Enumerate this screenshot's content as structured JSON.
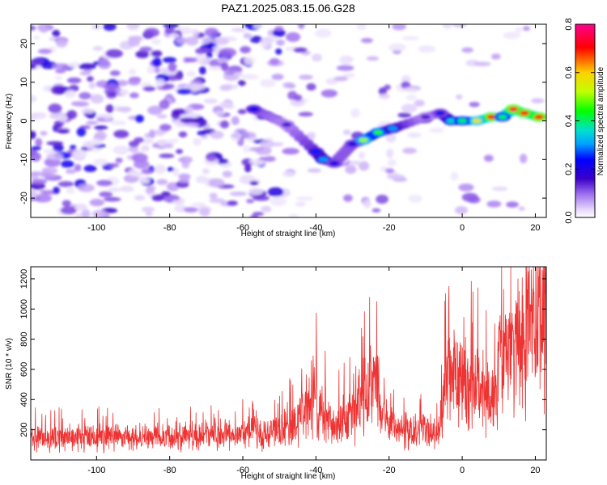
{
  "title": "PAZ1.2025.083.15.06.G28",
  "chart_data": [
    {
      "type": "heatmap",
      "xlabel": "Height of straight line (km)",
      "ylabel": "Frequency (Hz)",
      "xlim": [
        -118,
        23
      ],
      "ylim": [
        -25,
        25
      ],
      "xticks": [
        -100,
        -80,
        -60,
        -40,
        -20,
        0,
        20
      ],
      "yticks": [
        -20,
        -10,
        0,
        10,
        20
      ],
      "colorbar": {
        "label": "Normalized spectral amplitude",
        "range": [
          0.0,
          0.8
        ],
        "ticks": [
          0.0,
          0.2,
          0.4,
          0.6,
          0.8
        ],
        "colors": [
          "#ffffff",
          "#a070f0",
          "#3c00c8",
          "#0000ff",
          "#00a0ff",
          "#00e0d0",
          "#00ff00",
          "#c0ff00",
          "#ffd000",
          "#ff0000",
          "#ff0090"
        ]
      },
      "ridge": [
        {
          "x": -57,
          "y": 3,
          "value": 0.22
        },
        {
          "x": -48,
          "y": -1,
          "value": 0.15
        },
        {
          "x": -40,
          "y": -8,
          "value": 0.25
        },
        {
          "x": -38,
          "y": -10,
          "value": 0.3
        },
        {
          "x": -35,
          "y": -11,
          "value": 0.2
        },
        {
          "x": -30,
          "y": -6,
          "value": 0.2
        },
        {
          "x": -27,
          "y": -5,
          "value": 0.5
        },
        {
          "x": -23,
          "y": -3,
          "value": 0.45
        },
        {
          "x": -19,
          "y": -2,
          "value": 0.3
        },
        {
          "x": -10,
          "y": 1,
          "value": 0.15
        },
        {
          "x": -6,
          "y": 2,
          "value": 0.2
        },
        {
          "x": -3,
          "y": 0,
          "value": 0.35
        },
        {
          "x": 0,
          "y": 0,
          "value": 0.4
        },
        {
          "x": 4,
          "y": 0,
          "value": 0.55
        },
        {
          "x": 8,
          "y": 1,
          "value": 0.7
        },
        {
          "x": 11,
          "y": 1,
          "value": 0.4
        },
        {
          "x": 14,
          "y": 3,
          "value": 0.75
        },
        {
          "x": 17,
          "y": 2,
          "value": 0.7
        },
        {
          "x": 21,
          "y": 1,
          "value": 0.72
        }
      ]
    },
    {
      "type": "line",
      "xlabel": "Height of straight line (km)",
      "ylabel": "SNR (10 * v/v)",
      "xlim": [
        -118,
        23
      ],
      "ylim": [
        0,
        1280
      ],
      "xticks": [
        -100,
        -80,
        -60,
        -40,
        -20,
        0,
        20
      ],
      "yticks": [
        200,
        400,
        600,
        800,
        1000,
        1200
      ],
      "series": [
        {
          "color": "#ee3333",
          "x": [
            -118,
            -110,
            -100,
            -90,
            -80,
            -70,
            -60,
            -50,
            -45,
            -42,
            -40,
            -38,
            -35,
            -30,
            -27,
            -24,
            -22,
            -20,
            -15,
            -10,
            -6,
            -5,
            -3,
            0,
            3,
            6,
            9,
            10,
            12,
            15,
            18,
            20,
            23
          ],
          "y": [
            140,
            140,
            150,
            150,
            150,
            160,
            170,
            190,
            260,
            380,
            420,
            320,
            230,
            290,
            450,
            520,
            340,
            230,
            200,
            200,
            190,
            520,
            560,
            520,
            500,
            480,
            380,
            620,
            700,
            780,
            880,
            960,
            1000
          ]
        }
      ]
    }
  ]
}
